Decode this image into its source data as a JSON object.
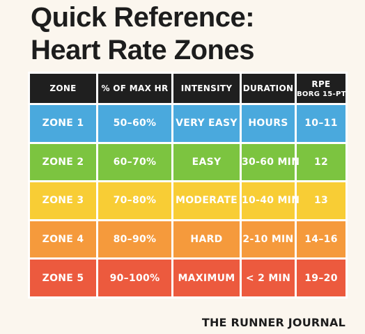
{
  "title_line1": "Quick Reference:",
  "title_line2": "Heart Rate Zones",
  "table": {
    "headers": {
      "zone": "ZONE",
      "max_hr": "% OF MAX HR",
      "intensity": "INTENSITY",
      "duration": "DURATION",
      "rpe": "RPE",
      "rpe_sub": "BORG 15-PT"
    },
    "rows": [
      {
        "zone": "ZONE 1",
        "max_hr": "50–60%",
        "intensity": "VERY EASY",
        "duration": "HOURS",
        "rpe": "10–11",
        "color": "#4aa9dd"
      },
      {
        "zone": "ZONE 2",
        "max_hr": "60–70%",
        "intensity": "EASY",
        "duration": "30-60 MIN",
        "rpe": "12",
        "color": "#7cc440"
      },
      {
        "zone": "ZONE 3",
        "max_hr": "70–80%",
        "intensity": "MODERATE",
        "duration": "10-40 MIN",
        "rpe": "13",
        "color": "#f8cd35"
      },
      {
        "zone": "ZONE 4",
        "max_hr": "80–90%",
        "intensity": "HARD",
        "duration": "2-10 MIN",
        "rpe": "14–16",
        "color": "#f59a3c"
      },
      {
        "zone": "ZONE 5",
        "max_hr": "90–100%",
        "intensity": "MAXIMUM",
        "duration": "< 2 MIN",
        "rpe": "19–20",
        "color": "#ec5a3e"
      }
    ]
  },
  "footer": "THE RUNNER JOURNAL"
}
